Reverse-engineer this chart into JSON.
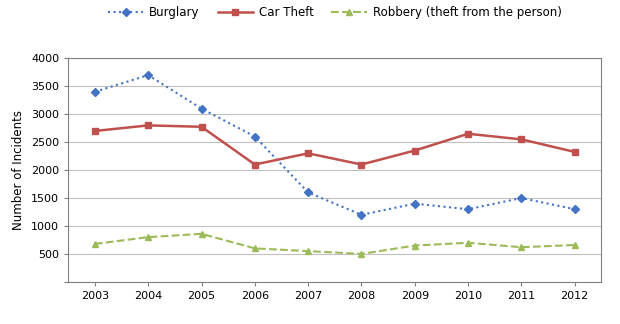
{
  "years": [
    2003,
    2004,
    2005,
    2006,
    2007,
    2008,
    2009,
    2010,
    2011,
    2012
  ],
  "burglary": [
    3400,
    3700,
    3100,
    2600,
    1600,
    1200,
    1400,
    1300,
    1500,
    1300
  ],
  "car_theft": [
    2700,
    2800,
    2775,
    2100,
    2300,
    2100,
    2350,
    2650,
    2550,
    2325
  ],
  "robbery": [
    680,
    800,
    860,
    600,
    550,
    500,
    650,
    700,
    620,
    660
  ],
  "burglary_color": "#4472C4",
  "car_theft_color": "#C0504D",
  "robbery_color": "#9BBB59",
  "ylabel": "Number of Incidents",
  "ylim": [
    0,
    4000
  ],
  "yticks": [
    0,
    500,
    1000,
    1500,
    2000,
    2500,
    3000,
    3500,
    4000
  ],
  "legend_labels": [
    "Burglary",
    "Car Theft",
    "Robbery (theft from the person)"
  ],
  "background_color": "#ffffff",
  "spine_color": "#808080",
  "grid_color": "#c0c0c0"
}
